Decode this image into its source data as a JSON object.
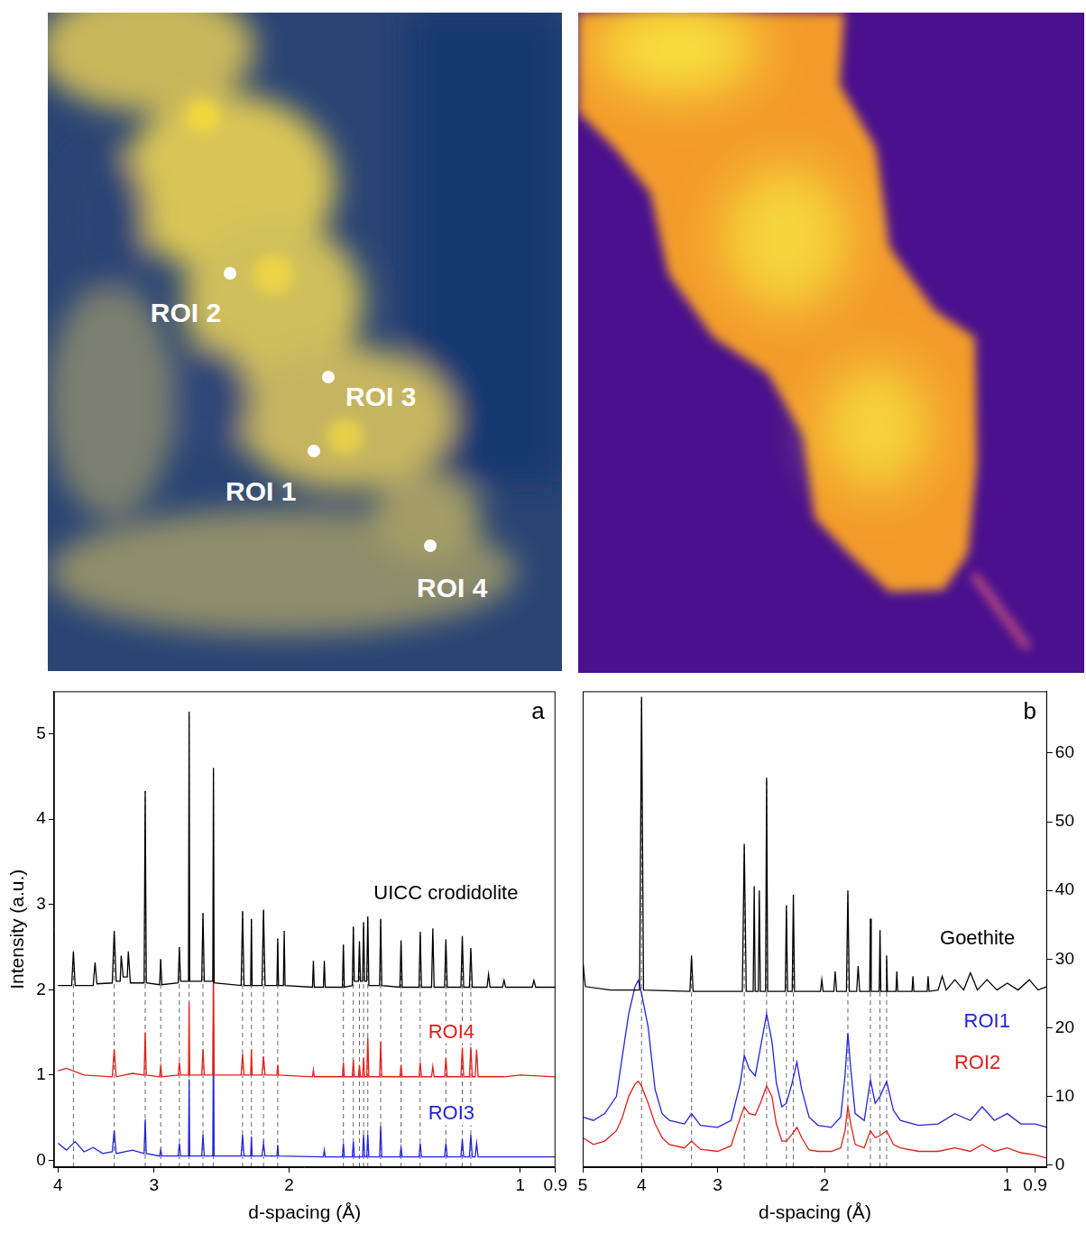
{
  "image_labels": [
    "ROI 2",
    "ROI 3",
    "ROI 1",
    "ROI 4"
  ],
  "chart_data": [
    {
      "type": "line",
      "panel": "a",
      "x_label": "d-spacing (Å)",
      "y_label": "Intensity (a.u.)",
      "log": "x",
      "grid": false,
      "xlim": [
        4.05,
        0.9
      ],
      "xticks": [
        4,
        3,
        2,
        1,
        0.9
      ],
      "ylim": [
        -0.08,
        5.5
      ],
      "yticks": [
        0,
        1,
        2,
        3,
        4,
        5
      ],
      "reference_lines": [
        3.82,
        3.38,
        3.08,
        2.94,
        2.78,
        2.7,
        2.59,
        2.51,
        2.3,
        2.24,
        2.16,
        2.07,
        1.7,
        1.65,
        1.62,
        1.6,
        1.58,
        1.52,
        1.43,
        1.35,
        1.25,
        1.19,
        1.16
      ],
      "series": [
        {
          "name": "UICC crodidolite",
          "color": "#000000",
          "label_x": 1.25,
          "label_y": 3.12,
          "x": [
            4.0,
            3.84,
            3.82,
            3.8,
            3.6,
            3.58,
            3.56,
            3.4,
            3.38,
            3.36,
            3.32,
            3.31,
            3.29,
            3.25,
            3.24,
            3.22,
            3.09,
            3.08,
            3.07,
            2.95,
            2.94,
            2.93,
            2.79,
            2.78,
            2.77,
            2.705,
            2.7,
            2.695,
            2.6,
            2.59,
            2.58,
            2.515,
            2.51,
            2.505,
            2.31,
            2.3,
            2.29,
            2.245,
            2.24,
            2.235,
            2.17,
            2.16,
            2.15,
            2.075,
            2.07,
            2.065,
            2.035,
            2.03,
            2.025,
            1.865,
            1.86,
            1.855,
            1.805,
            1.8,
            1.795,
            1.705,
            1.7,
            1.695,
            1.655,
            1.65,
            1.645,
            1.625,
            1.62,
            1.615,
            1.605,
            1.6,
            1.595,
            1.585,
            1.58,
            1.575,
            1.525,
            1.52,
            1.515,
            1.435,
            1.43,
            1.425,
            1.355,
            1.35,
            1.345,
            1.305,
            1.3,
            1.295,
            1.255,
            1.25,
            1.245,
            1.195,
            1.19,
            1.185,
            1.165,
            1.16,
            1.155,
            1.105,
            1.1,
            1.095,
            1.055,
            1.05,
            1.045,
            0.965,
            0.96,
            0.955,
            0.9
          ],
          "values": [
            2.05,
            2.05,
            2.45,
            2.05,
            2.05,
            2.32,
            2.07,
            2.08,
            2.69,
            2.1,
            2.1,
            2.4,
            2.15,
            2.15,
            2.45,
            2.08,
            2.08,
            4.33,
            2.08,
            2.06,
            2.36,
            2.06,
            2.08,
            2.5,
            2.1,
            2.1,
            5.26,
            2.1,
            2.1,
            2.9,
            2.1,
            2.1,
            4.6,
            2.08,
            2.05,
            2.92,
            2.05,
            2.05,
            2.83,
            2.05,
            2.05,
            2.94,
            2.05,
            2.05,
            2.6,
            2.05,
            2.05,
            2.69,
            2.05,
            2.03,
            2.34,
            2.03,
            2.03,
            2.34,
            2.03,
            2.03,
            2.53,
            2.03,
            2.05,
            2.74,
            2.1,
            2.1,
            2.57,
            2.1,
            2.1,
            2.79,
            2.1,
            2.1,
            2.86,
            2.05,
            2.05,
            2.83,
            2.05,
            2.03,
            2.58,
            2.03,
            2.03,
            2.68,
            2.03,
            2.03,
            2.72,
            2.03,
            2.03,
            2.59,
            2.03,
            2.03,
            2.63,
            2.03,
            2.03,
            2.49,
            2.03,
            2.03,
            2.18,
            2.03,
            2.03,
            2.11,
            2.03,
            2.03,
            2.11,
            2.03,
            2.03
          ]
        },
        {
          "name": "ROI4",
          "color": "#e0201a",
          "label_x": 1.23,
          "label_y": 1.5,
          "x": [
            4.0,
            3.9,
            3.7,
            3.4,
            3.38,
            3.36,
            3.2,
            3.09,
            3.08,
            3.07,
            2.95,
            2.94,
            2.93,
            2.79,
            2.78,
            2.77,
            2.705,
            2.7,
            2.695,
            2.6,
            2.59,
            2.58,
            2.515,
            2.51,
            2.505,
            2.31,
            2.3,
            2.29,
            2.245,
            2.24,
            2.235,
            2.17,
            2.16,
            2.15,
            2.075,
            2.07,
            2.065,
            1.865,
            1.86,
            1.855,
            1.705,
            1.7,
            1.695,
            1.655,
            1.65,
            1.645,
            1.625,
            1.62,
            1.615,
            1.605,
            1.6,
            1.595,
            1.585,
            1.58,
            1.575,
            1.525,
            1.52,
            1.515,
            1.435,
            1.43,
            1.425,
            1.355,
            1.35,
            1.345,
            1.305,
            1.3,
            1.295,
            1.255,
            1.25,
            1.245,
            1.195,
            1.19,
            1.185,
            1.165,
            1.16,
            1.155,
            1.145,
            1.14,
            1.135,
            1.05,
            1.0,
            0.9
          ],
          "values": [
            1.05,
            1.08,
            1.0,
            0.98,
            1.3,
            0.98,
            1.02,
            1.0,
            1.5,
            1.0,
            0.98,
            1.1,
            0.98,
            1.0,
            1.15,
            1.0,
            1.0,
            1.85,
            1.0,
            1.0,
            1.3,
            1.0,
            1.0,
            2.38,
            1.0,
            1.0,
            1.25,
            1.0,
            1.0,
            1.3,
            1.0,
            1.0,
            1.22,
            1.0,
            1.0,
            1.12,
            1.0,
            0.98,
            1.06,
            0.98,
            0.98,
            1.15,
            0.98,
            0.98,
            1.18,
            0.98,
            0.98,
            1.12,
            0.98,
            0.98,
            1.2,
            0.98,
            0.98,
            1.44,
            0.98,
            0.98,
            1.39,
            0.98,
            0.98,
            1.12,
            0.98,
            0.98,
            1.15,
            0.98,
            0.98,
            1.1,
            0.98,
            0.98,
            1.2,
            0.98,
            0.98,
            1.32,
            0.98,
            0.98,
            1.33,
            0.98,
            0.98,
            1.3,
            0.98,
            0.98,
            1.0,
            0.98
          ]
        },
        {
          "name": "ROI3",
          "color": "#2323d8",
          "label_x": 1.23,
          "label_y": 0.54,
          "x": [
            4.0,
            3.9,
            3.8,
            3.7,
            3.6,
            3.5,
            3.4,
            3.38,
            3.36,
            3.2,
            3.09,
            3.08,
            3.07,
            2.95,
            2.94,
            2.93,
            2.79,
            2.78,
            2.77,
            2.705,
            2.7,
            2.695,
            2.6,
            2.59,
            2.58,
            2.515,
            2.51,
            2.505,
            2.31,
            2.3,
            2.29,
            2.245,
            2.24,
            2.235,
            2.17,
            2.16,
            2.15,
            2.075,
            2.07,
            2.065,
            1.805,
            1.8,
            1.795,
            1.705,
            1.7,
            1.695,
            1.655,
            1.65,
            1.645,
            1.605,
            1.6,
            1.595,
            1.585,
            1.58,
            1.575,
            1.525,
            1.52,
            1.515,
            1.435,
            1.43,
            1.425,
            1.355,
            1.35,
            1.345,
            1.255,
            1.25,
            1.245,
            1.195,
            1.19,
            1.185,
            1.165,
            1.16,
            1.155,
            1.145,
            1.14,
            1.135,
            1.0,
            0.9
          ],
          "values": [
            0.2,
            0.12,
            0.22,
            0.1,
            0.15,
            0.08,
            0.1,
            0.35,
            0.08,
            0.12,
            0.08,
            0.48,
            0.08,
            0.05,
            0.12,
            0.05,
            0.05,
            0.2,
            0.05,
            0.05,
            0.95,
            0.05,
            0.05,
            0.3,
            0.05,
            0.05,
            1.6,
            0.05,
            0.05,
            0.3,
            0.05,
            0.05,
            0.28,
            0.05,
            0.05,
            0.2,
            0.05,
            0.05,
            0.18,
            0.05,
            0.04,
            0.12,
            0.04,
            0.04,
            0.2,
            0.04,
            0.04,
            0.22,
            0.04,
            0.04,
            0.3,
            0.04,
            0.04,
            0.3,
            0.04,
            0.04,
            0.4,
            0.04,
            0.04,
            0.15,
            0.04,
            0.04,
            0.2,
            0.04,
            0.04,
            0.2,
            0.04,
            0.04,
            0.25,
            0.04,
            0.04,
            0.3,
            0.04,
            0.04,
            0.2,
            0.04,
            0.04,
            0.04
          ]
        }
      ]
    },
    {
      "type": "line",
      "panel": "b",
      "x_label": "d-spacing (Å)",
      "log": "x",
      "grid": false,
      "xlim": [
        5,
        0.86
      ],
      "xticks": [
        5,
        4,
        3,
        2,
        1,
        0.9
      ],
      "y2lim": [
        -0.3,
        69
      ],
      "y2ticks": [
        0,
        10,
        20,
        30,
        40,
        50,
        60
      ],
      "reference_lines": [
        4.0,
        3.31,
        2.71,
        2.49,
        2.31,
        2.25,
        1.83,
        1.68,
        1.62,
        1.58
      ],
      "series": [
        {
          "name": "Goethite",
          "color": "#000000",
          "axis": "y2",
          "label_x": 1.12,
          "label_y": 33,
          "x": [
            5.0,
            4.95,
            4.5,
            4.03,
            4.0,
            3.97,
            3.33,
            3.31,
            3.29,
            2.73,
            2.71,
            2.69,
            2.62,
            2.61,
            2.6,
            2.57,
            2.56,
            2.55,
            2.5,
            2.49,
            2.48,
            2.32,
            2.31,
            2.3,
            2.26,
            2.25,
            2.24,
            2.03,
            2.02,
            2.01,
            1.93,
            1.92,
            1.91,
            1.84,
            1.83,
            1.82,
            1.77,
            1.76,
            1.75,
            1.685,
            1.68,
            1.675,
            1.625,
            1.62,
            1.615,
            1.585,
            1.58,
            1.575,
            1.525,
            1.52,
            1.515,
            1.435,
            1.43,
            1.425,
            1.355,
            1.35,
            1.345,
            1.3,
            1.28,
            1.26,
            1.22,
            1.18,
            1.15,
            1.12,
            1.08,
            1.04,
            1.0,
            0.96,
            0.92,
            0.89,
            0.86
          ],
          "values": [
            30,
            26,
            25.5,
            25.5,
            68.2,
            25.5,
            25.3,
            30.5,
            25.3,
            25.3,
            46.8,
            25.3,
            25.3,
            40.6,
            25.3,
            25.3,
            40,
            25.3,
            25.3,
            56.4,
            25.3,
            25.3,
            37.8,
            25.3,
            25.3,
            39.4,
            25.3,
            25.3,
            27,
            25.3,
            25.3,
            28.2,
            25.3,
            25.3,
            40,
            25.3,
            25.3,
            29,
            25.3,
            25.3,
            35.9,
            25.3,
            25.3,
            34.2,
            25.3,
            25.3,
            30.5,
            25.3,
            25.3,
            28.2,
            25.3,
            25.3,
            27.5,
            25.3,
            25.3,
            27.5,
            25.3,
            25.5,
            27.5,
            25.5,
            27,
            25.5,
            28,
            25.5,
            27,
            25.5,
            26.5,
            25.5,
            27,
            25.5,
            26
          ]
        },
        {
          "name": "ROI1",
          "color": "#2323d8",
          "axis": "y2",
          "label_x": 1.08,
          "label_y": 20.8,
          "x": [
            5.0,
            4.8,
            4.6,
            4.4,
            4.3,
            4.2,
            4.1,
            4.05,
            4.0,
            3.9,
            3.8,
            3.7,
            3.6,
            3.4,
            3.31,
            3.2,
            3.0,
            2.85,
            2.75,
            2.71,
            2.66,
            2.6,
            2.55,
            2.49,
            2.44,
            2.4,
            2.35,
            2.31,
            2.26,
            2.22,
            2.18,
            2.12,
            2.05,
            1.95,
            1.88,
            1.85,
            1.83,
            1.81,
            1.78,
            1.72,
            1.68,
            1.65,
            1.62,
            1.58,
            1.54,
            1.5,
            1.4,
            1.3,
            1.22,
            1.15,
            1.1,
            1.05,
            1.0,
            0.95,
            0.9,
            0.86
          ],
          "values": [
            7,
            6.5,
            7.5,
            10,
            16,
            22,
            26,
            26.9,
            25,
            20,
            11,
            7.5,
            6.5,
            6,
            7.5,
            5.8,
            5.5,
            6.5,
            12,
            16,
            14,
            13,
            17,
            22,
            18,
            12,
            8.5,
            9,
            12,
            15,
            11,
            7,
            5.8,
            5.5,
            7,
            13,
            19.2,
            14,
            7.5,
            6.5,
            12.4,
            9,
            10,
            12.2,
            8,
            6.5,
            5.8,
            6,
            7.5,
            6.5,
            8.5,
            6.5,
            7.5,
            6,
            6,
            5.5
          ]
        },
        {
          "name": "ROI2",
          "color": "#e0201a",
          "axis": "y2",
          "label_x": 1.12,
          "label_y": 14.8,
          "x": [
            5.0,
            4.8,
            4.6,
            4.4,
            4.3,
            4.2,
            4.1,
            4.05,
            4.0,
            3.9,
            3.8,
            3.7,
            3.6,
            3.4,
            3.31,
            3.2,
            3.0,
            2.85,
            2.75,
            2.71,
            2.66,
            2.6,
            2.55,
            2.49,
            2.44,
            2.4,
            2.35,
            2.31,
            2.26,
            2.22,
            2.18,
            2.12,
            2.05,
            1.95,
            1.88,
            1.85,
            1.83,
            1.81,
            1.78,
            1.72,
            1.68,
            1.65,
            1.62,
            1.58,
            1.54,
            1.5,
            1.4,
            1.3,
            1.22,
            1.15,
            1.1,
            1.05,
            1.0,
            0.95,
            0.9,
            0.86
          ],
          "values": [
            4,
            3,
            3.5,
            5,
            7,
            10,
            11.8,
            12.2,
            11.5,
            9,
            6,
            4,
            3,
            2.5,
            3.5,
            2.3,
            2,
            2.8,
            7,
            8.5,
            7.5,
            7.3,
            9,
            11.5,
            10,
            6,
            3.5,
            3.5,
            4.5,
            5.5,
            4,
            2.2,
            2,
            2,
            2.5,
            5,
            8.5,
            6,
            3,
            2.5,
            5,
            4,
            4.3,
            5,
            3,
            2.5,
            2,
            2,
            2.5,
            2,
            3,
            2,
            2.5,
            1.8,
            1.5,
            1
          ]
        }
      ]
    }
  ]
}
